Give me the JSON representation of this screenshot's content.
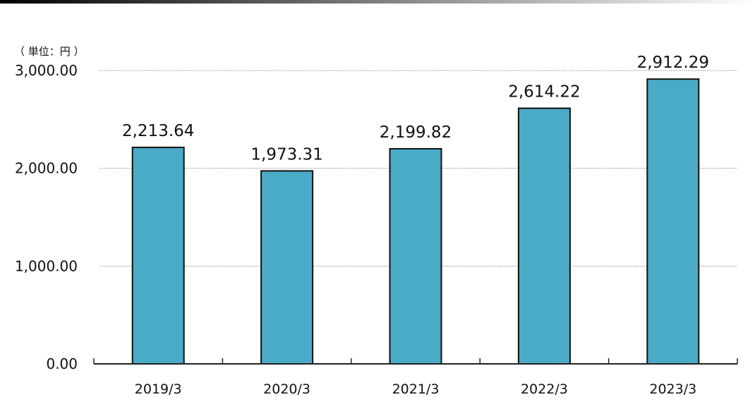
{
  "header_band": {
    "gradient": [
      "#000000",
      "#ffffff"
    ]
  },
  "chart_data": {
    "type": "bar",
    "unit_label": "（ 単位：円 ）",
    "categories": [
      "2019/3",
      "2020/3",
      "2021/3",
      "2022/3",
      "2023/3"
    ],
    "values": [
      2213.64,
      1973.31,
      2199.82,
      2614.22,
      2912.29
    ],
    "value_labels": [
      "2,213.64",
      "1,973.31",
      "2,199.82",
      "2,614.22",
      "2,912.29"
    ],
    "yticks": [
      0,
      1000,
      2000,
      3000
    ],
    "ytick_labels": [
      "0.00",
      "1,000.00",
      "2,000.00",
      "3,000.00"
    ],
    "ylim": [
      0,
      3000
    ],
    "grid": true,
    "legend": "none",
    "colors": {
      "bar": "#4aabc7",
      "bar_edge": "#111111"
    }
  }
}
